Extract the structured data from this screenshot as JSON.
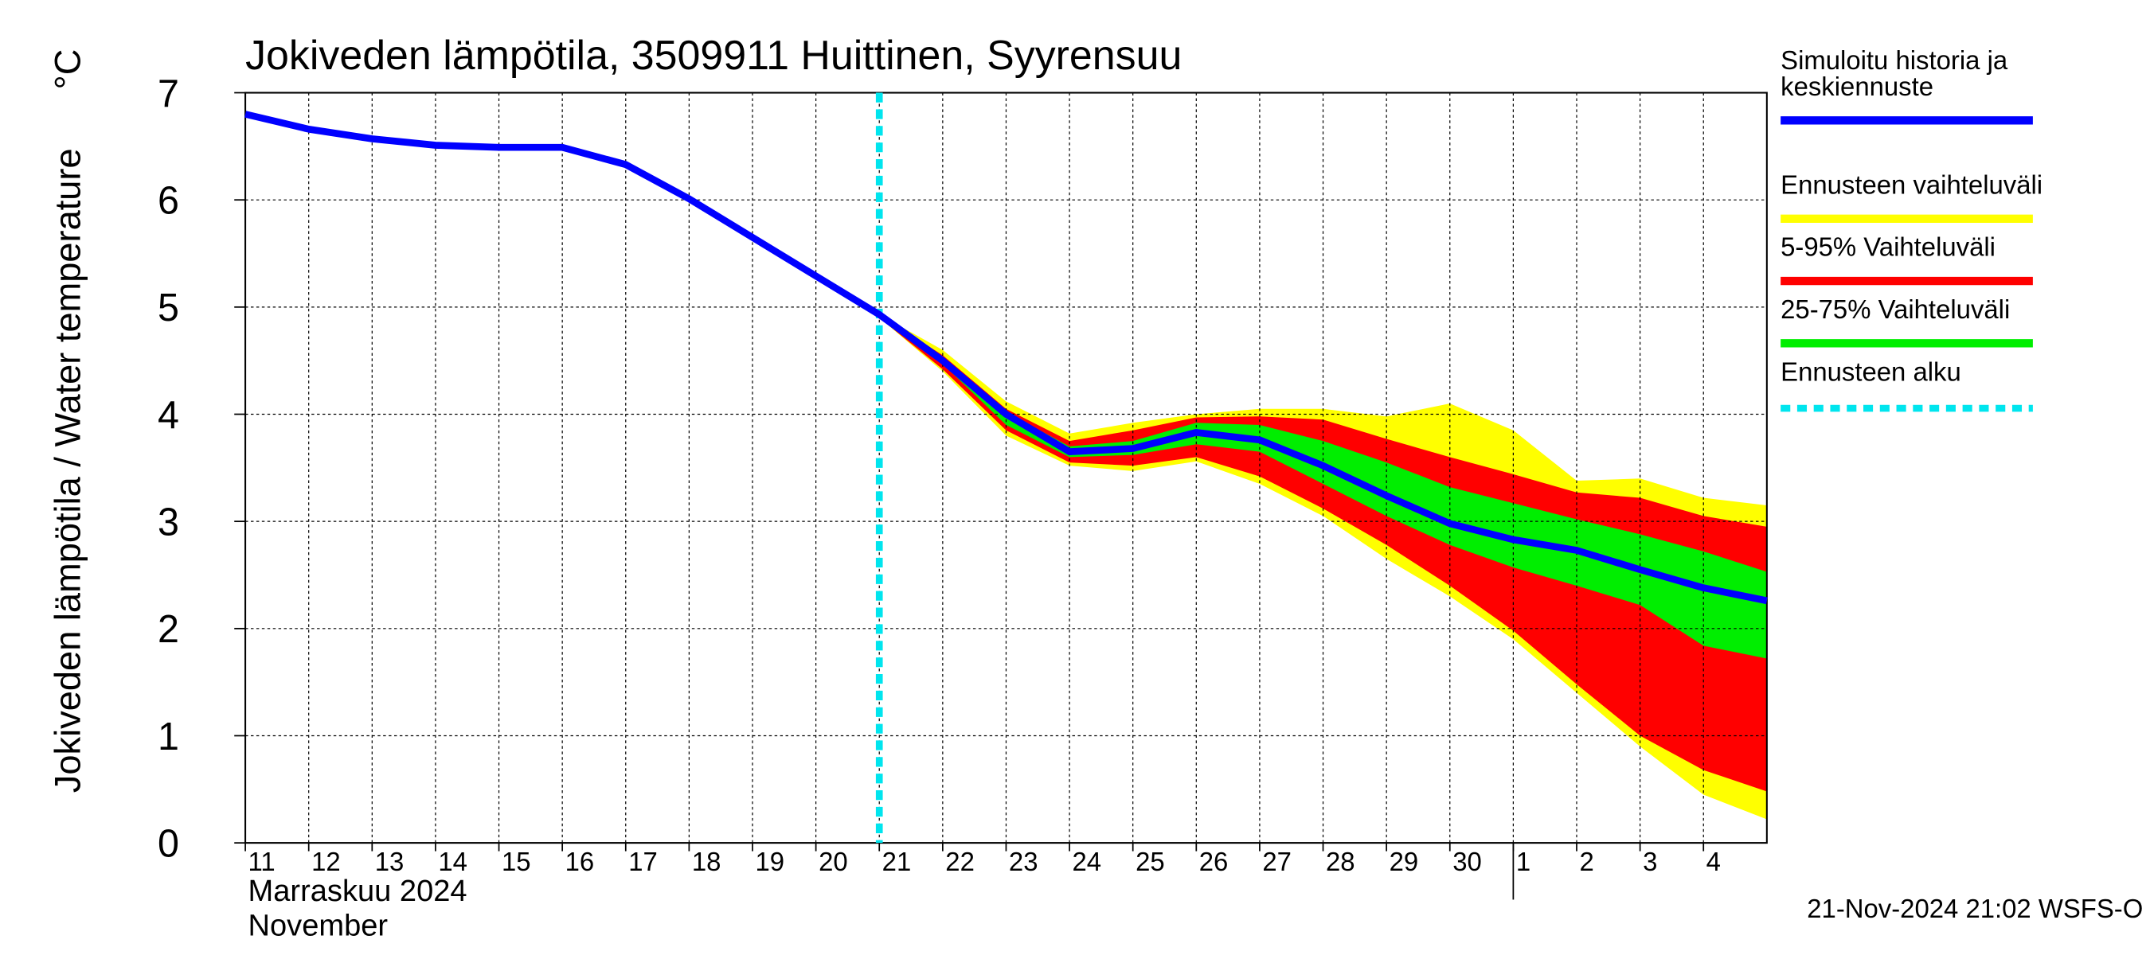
{
  "chart_data": {
    "type": "line",
    "title": "Jokiveden lämpötila, 3509911 Huittinen, Syyrensuu",
    "y_label": "Jokiveden lämpötila / Water temperature",
    "y_unit": "°C",
    "x_label_fi": "Marraskuu 2024",
    "x_label_en": "November",
    "timestamp": "21-Nov-2024 21:02 WSFS-O",
    "grid": true,
    "x": [
      0,
      1,
      2,
      3,
      4,
      5,
      6,
      7,
      8,
      9,
      10,
      11,
      12,
      13,
      14,
      15,
      16,
      17,
      18,
      19,
      20,
      21,
      22,
      23,
      24
    ],
    "xlim": [
      0,
      24
    ],
    "xticks": [
      {
        "value": 0,
        "label": "11"
      },
      {
        "value": 1,
        "label": "12"
      },
      {
        "value": 2,
        "label": "13"
      },
      {
        "value": 3,
        "label": "14"
      },
      {
        "value": 4,
        "label": "15"
      },
      {
        "value": 5,
        "label": "16"
      },
      {
        "value": 6,
        "label": "17"
      },
      {
        "value": 7,
        "label": "18"
      },
      {
        "value": 8,
        "label": "19"
      },
      {
        "value": 9,
        "label": "20"
      },
      {
        "value": 10,
        "label": "21"
      },
      {
        "value": 11,
        "label": "22"
      },
      {
        "value": 12,
        "label": "23"
      },
      {
        "value": 13,
        "label": "24"
      },
      {
        "value": 14,
        "label": "25"
      },
      {
        "value": 15,
        "label": "26"
      },
      {
        "value": 16,
        "label": "27"
      },
      {
        "value": 17,
        "label": "28"
      },
      {
        "value": 18,
        "label": "29"
      },
      {
        "value": 19,
        "label": "30"
      },
      {
        "value": 20,
        "label": "1"
      },
      {
        "value": 21,
        "label": "2"
      },
      {
        "value": 22,
        "label": "3"
      },
      {
        "value": 23,
        "label": "4"
      }
    ],
    "month_break": 20,
    "ylim": [
      0,
      7
    ],
    "yticks": [
      0,
      1,
      2,
      3,
      4,
      5,
      6,
      7
    ],
    "series": [
      {
        "name": "Ennusteen vaihteluväli",
        "color": "#ffff00",
        "high": [
          null,
          null,
          null,
          null,
          null,
          null,
          null,
          null,
          null,
          null,
          4.93,
          4.6,
          4.12,
          3.82,
          3.92,
          4.0,
          4.05,
          4.05,
          3.98,
          4.1,
          3.85,
          3.38,
          3.4,
          3.22,
          3.15
        ],
        "low": [
          null,
          null,
          null,
          null,
          null,
          null,
          null,
          null,
          null,
          null,
          4.9,
          4.4,
          3.8,
          3.52,
          3.47,
          3.56,
          3.35,
          3.05,
          2.65,
          2.3,
          1.9,
          1.4,
          0.9,
          0.45,
          0.22
        ]
      },
      {
        "name": "5-95% Vaihteluväli",
        "color": "#ff0000",
        "high": [
          null,
          null,
          null,
          null,
          null,
          null,
          null,
          null,
          null,
          null,
          4.93,
          4.55,
          4.05,
          3.75,
          3.85,
          3.97,
          3.98,
          3.95,
          3.77,
          3.6,
          3.44,
          3.27,
          3.22,
          3.05,
          2.95
        ],
        "low": [
          null,
          null,
          null,
          null,
          null,
          null,
          null,
          null,
          null,
          null,
          4.9,
          4.42,
          3.85,
          3.55,
          3.52,
          3.6,
          3.42,
          3.12,
          2.78,
          2.4,
          1.98,
          1.48,
          1.0,
          0.68,
          0.48
        ]
      },
      {
        "name": "25-75% Vaihteluväli",
        "color": "#00ee00",
        "high": [
          null,
          null,
          null,
          null,
          null,
          null,
          null,
          null,
          null,
          null,
          4.92,
          4.52,
          4.02,
          3.7,
          3.75,
          3.92,
          3.9,
          3.75,
          3.55,
          3.32,
          3.17,
          3.02,
          2.88,
          2.72,
          2.53
        ],
        "low": [
          null,
          null,
          null,
          null,
          null,
          null,
          null,
          null,
          null,
          null,
          4.9,
          4.47,
          3.9,
          3.6,
          3.62,
          3.72,
          3.65,
          3.35,
          3.05,
          2.78,
          2.57,
          2.4,
          2.22,
          1.84,
          1.72
        ]
      },
      {
        "name": "Simuloitu historia ja keskiennuste",
        "color": "#0000ff",
        "values": [
          6.8,
          6.66,
          6.57,
          6.51,
          6.49,
          6.49,
          6.33,
          6.01,
          5.65,
          5.29,
          4.93,
          4.5,
          4.0,
          3.65,
          3.68,
          3.83,
          3.76,
          3.52,
          3.24,
          2.98,
          2.83,
          2.73,
          2.55,
          2.38,
          2.26
        ]
      }
    ],
    "forecast_start": {
      "name": "Ennusteen alku",
      "color": "#00e5ee",
      "x": 10
    },
    "legend_order": [
      3,
      0,
      1,
      2
    ]
  }
}
